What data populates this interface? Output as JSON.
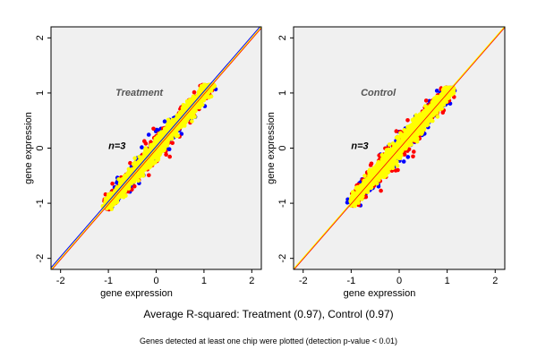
{
  "captions": {
    "main": "Average R-squared: Treatment (0.97), Control (0.97)",
    "sub": "Genes detected at least one chip were plotted (detection p-value < 0.01)"
  },
  "colors": {
    "background": "#f0f0f0",
    "points_primary": "#ffff00",
    "points_red": "#ff0000",
    "points_blue": "#0000ff",
    "line_yellow": "#ffff00",
    "line_red": "#ff0000",
    "line_blue": "#0000ff"
  },
  "chart_data": [
    {
      "type": "scatter",
      "title": "Treatment",
      "annotation": "n=3",
      "xlabel": "gene expression",
      "ylabel": "gene expression",
      "xlim": [
        -2.2,
        2.2
      ],
      "ylim": [
        -2.2,
        2.2
      ],
      "xticks": [
        -2,
        -1,
        0,
        1,
        2
      ],
      "yticks": [
        -2,
        -1,
        0,
        1,
        2
      ],
      "grid": false,
      "point_cloud": {
        "x_range": [
          -1.05,
          1.15
        ],
        "y_range": [
          -1.15,
          1.15
        ],
        "shape": "elongated ellipse along the diagonal",
        "series_colors": [
          "#ff0000",
          "#0000ff",
          "#ffff00"
        ]
      },
      "fit_lines": [
        {
          "color": "#0000ff",
          "intercept": 0.03,
          "slope": 1.0
        },
        {
          "color": "#ff0000",
          "intercept": -0.02,
          "slope": 1.0
        },
        {
          "color": "#ffff00",
          "intercept": 0.0,
          "slope": 1.0
        }
      ]
    },
    {
      "type": "scatter",
      "title": "Control",
      "annotation": "n=3",
      "xlabel": "gene expression",
      "ylabel": "gene expression",
      "xlim": [
        -2.2,
        2.2
      ],
      "ylim": [
        -2.2,
        2.2
      ],
      "xticks": [
        -2,
        -1,
        0,
        1,
        2
      ],
      "yticks": [
        -2,
        -1,
        0,
        1,
        2
      ],
      "grid": false,
      "point_cloud": {
        "x_range": [
          -1.0,
          1.1
        ],
        "y_range": [
          -1.05,
          1.1
        ],
        "shape": "elongated ellipse along the diagonal",
        "series_colors": [
          "#ff0000",
          "#0000ff",
          "#ffff00"
        ]
      },
      "fit_lines": [
        {
          "color": "#0000ff",
          "intercept": 0.0,
          "slope": 1.0
        },
        {
          "color": "#ff0000",
          "intercept": -0.01,
          "slope": 1.0
        },
        {
          "color": "#ffff00",
          "intercept": 0.01,
          "slope": 1.0
        }
      ]
    }
  ]
}
